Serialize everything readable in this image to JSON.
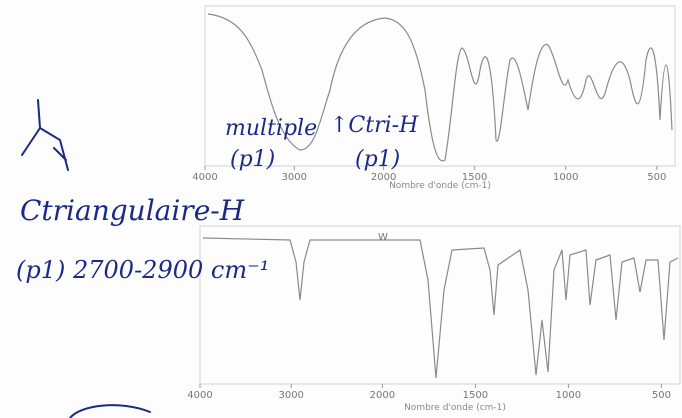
{
  "annotations": {
    "structure_label": "Ctriangulaire-H",
    "structure_range": "(p1) 2700-2900 cm⁻¹",
    "multiple_label": "multiple",
    "multiple_ref": "(p1)",
    "ctri_label": "↑Ctri-H",
    "ctri_ref": "(p1)"
  },
  "spectra": [
    {
      "x_label": "Nombre d'onde (cm-1)",
      "xticks": [
        4000,
        3000,
        2000,
        1500,
        1000,
        500
      ]
    },
    {
      "x_label": "Nombre d'onde (cm-1)",
      "xticks": [
        4000,
        3000,
        2000,
        1500,
        1000,
        500
      ],
      "marker": "W"
    }
  ]
}
